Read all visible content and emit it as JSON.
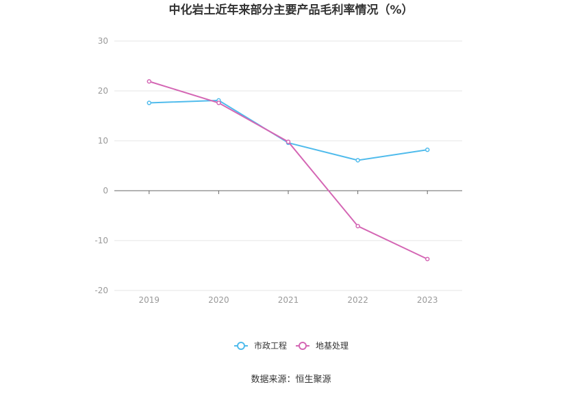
{
  "chart_data": {
    "type": "line",
    "title": "中化岩土近年来部分主要产品毛利率情况（%）",
    "categories": [
      "2019",
      "2020",
      "2021",
      "2022",
      "2023"
    ],
    "yticks": [
      "30",
      "20",
      "10",
      "0",
      "-10",
      "-20"
    ],
    "ylim": [
      -20,
      30
    ],
    "grid": true,
    "legend_position": "bottom",
    "series": [
      {
        "name": "市政工程",
        "color": "#4fbbec",
        "values": [
          17.6,
          18.1,
          9.6,
          6.1,
          8.2
        ]
      },
      {
        "name": "地基处理",
        "color": "#d466b4",
        "values": [
          21.9,
          17.6,
          9.8,
          -7.1,
          -13.7
        ]
      }
    ]
  },
  "source": "数据来源：恒生聚源"
}
